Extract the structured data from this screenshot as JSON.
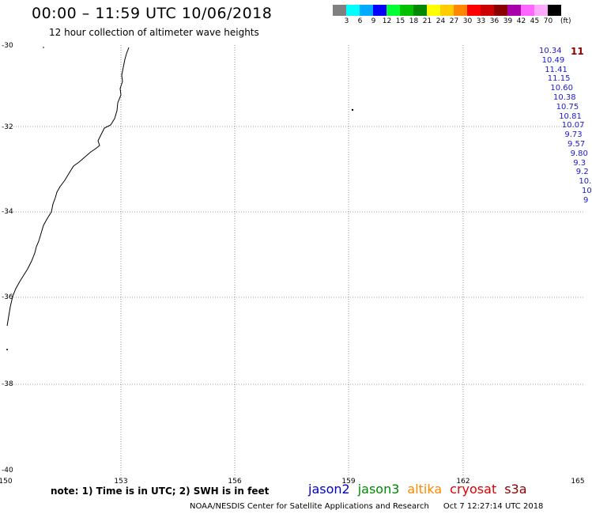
{
  "header": {
    "title": "00:00 – 11:59 UTC 10/06/2018",
    "subtitle": "12 hour collection of altimeter wave heights"
  },
  "colorbar": {
    "unit": "(ft)",
    "colors": [
      "#808080",
      "#00ffff",
      "#00aaff",
      "#0000ff",
      "#00ff33",
      "#00c000",
      "#008800",
      "#ffff00",
      "#ffcc00",
      "#ff8800",
      "#ff0000",
      "#cc0000",
      "#880000",
      "#aa00aa",
      "#ff66ff",
      "#ffaaff",
      "#000000"
    ],
    "labels": [
      "3",
      "6",
      "9",
      "12",
      "15",
      "18",
      "21",
      "24",
      "27",
      "30",
      "33",
      "36",
      "39",
      "42",
      "45",
      "70"
    ]
  },
  "map": {
    "lat_labels": [
      "-30",
      "-32",
      "-34",
      "-36",
      "-38",
      "-40"
    ],
    "lon_labels": [
      "150",
      "153",
      "156",
      "159",
      "162",
      "165"
    ]
  },
  "wave_heights": {
    "max_label": "11",
    "values": [
      "10.34",
      "10.49",
      "11.41",
      "11.15",
      "10.60",
      "10.38",
      "10.75",
      "10.81",
      "10.07",
      "9.73",
      "9.57",
      "9.80",
      "9.3",
      "9.2",
      "10.",
      "10",
      "9"
    ]
  },
  "footer": {
    "note": "note: 1) Time is in UTC; 2) SWH is in feet",
    "satellites": [
      {
        "name": "jason2",
        "color": "#0000cc"
      },
      {
        "name": "jason3",
        "color": "#008800"
      },
      {
        "name": "altika",
        "color": "#ff8800"
      },
      {
        "name": "cryosat",
        "color": "#dd0000"
      },
      {
        "name": "s3a",
        "color": "#880000"
      }
    ],
    "credit": "NOAA/NESDIS Center for Satellite Applications and Research",
    "timestamp": "Oct  7 12:27:14 UTC 2018"
  }
}
